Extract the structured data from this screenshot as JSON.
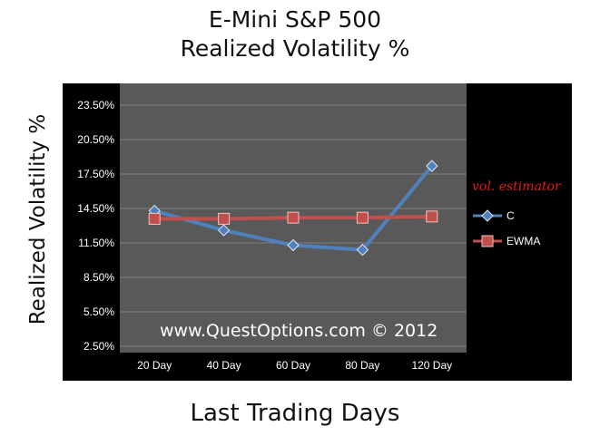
{
  "chart_data": {
    "type": "line",
    "title": "E-Mini S&P 500",
    "subtitle": "Realized Volatility %",
    "xlabel": "Last Trading Days",
    "ylabel": "Realized Volatility %",
    "categories": [
      "20 Day",
      "40 Day",
      "60 Day",
      "80 Day",
      "120 Day"
    ],
    "y_ticks": [
      "2.50%",
      "5.50%",
      "8.50%",
      "11.50%",
      "14.50%",
      "17.50%",
      "20.50%",
      "23.50%"
    ],
    "ylim": [
      2.5,
      23.5
    ],
    "grid": true,
    "legend_title": "vol. estimator",
    "legend_position": "right",
    "series": [
      {
        "name": "C",
        "color": "#4f81bd",
        "marker": "diamond",
        "values": [
          14.3,
          12.6,
          11.3,
          10.9,
          18.2
        ]
      },
      {
        "name": "EWMA",
        "color": "#c0504d",
        "marker": "square",
        "values": [
          13.6,
          13.6,
          13.7,
          13.7,
          13.8
        ]
      }
    ],
    "watermark": "www.QuestOptions.com © 2012",
    "colors": {
      "plot_bg": "#595959",
      "frame_bg": "#000000",
      "grid": "#808080",
      "tick_text": "#ffffff",
      "legend_title": "#e01b1b"
    }
  }
}
